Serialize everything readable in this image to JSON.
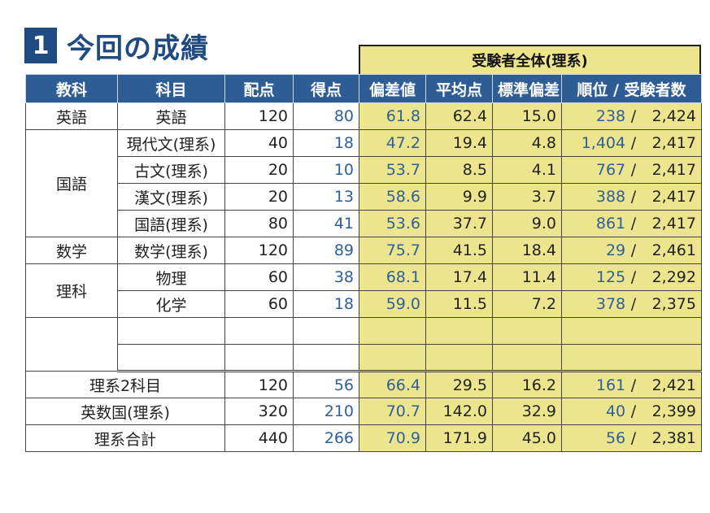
{
  "title": {
    "number": "1",
    "text": "今回の成績"
  },
  "group_header": "受験者全体(理系)",
  "headers": [
    "教科",
    "科目",
    "配点",
    "得点",
    "偏差値",
    "平均点",
    "標準偏差",
    "順位 / 受験者数"
  ],
  "rows": [
    {
      "subject": "英語",
      "course": "英語",
      "max": "120",
      "score": "80",
      "dev": "61.8",
      "avg": "62.4",
      "sd": "15.0",
      "rank": "238",
      "total": "2,424"
    },
    {
      "subject": "国語",
      "course": "現代文(理系)",
      "max": "40",
      "score": "18",
      "dev": "47.2",
      "avg": "19.4",
      "sd": "4.8",
      "rank": "1,404",
      "total": "2,417"
    },
    {
      "course": "古文(理系)",
      "max": "20",
      "score": "10",
      "dev": "53.7",
      "avg": "8.5",
      "sd": "4.1",
      "rank": "767",
      "total": "2,417"
    },
    {
      "course": "漢文(理系)",
      "max": "20",
      "score": "13",
      "dev": "58.6",
      "avg": "9.9",
      "sd": "3.7",
      "rank": "388",
      "total": "2,417"
    },
    {
      "course": "国語(理系)",
      "max": "80",
      "score": "41",
      "dev": "53.6",
      "avg": "37.7",
      "sd": "9.0",
      "rank": "861",
      "total": "2,417"
    },
    {
      "subject": "数学",
      "course": "数学(理系)",
      "max": "120",
      "score": "89",
      "dev": "75.7",
      "avg": "41.5",
      "sd": "18.4",
      "rank": "29",
      "total": "2,461"
    },
    {
      "subject": "理科",
      "course": "物理",
      "max": "60",
      "score": "38",
      "dev": "68.1",
      "avg": "17.4",
      "sd": "11.4",
      "rank": "125",
      "total": "2,292"
    },
    {
      "course": "化学",
      "max": "60",
      "score": "18",
      "dev": "59.0",
      "avg": "11.5",
      "sd": "7.2",
      "rank": "378",
      "total": "2,375"
    }
  ],
  "totals": [
    {
      "label": "理系2科目",
      "max": "120",
      "score": "56",
      "dev": "66.4",
      "avg": "29.5",
      "sd": "16.2",
      "rank": "161",
      "total": "2,421"
    },
    {
      "label": "英数国(理系)",
      "max": "320",
      "score": "210",
      "dev": "70.7",
      "avg": "142.0",
      "sd": "32.9",
      "rank": "40",
      "total": "2,399"
    },
    {
      "label": "理系合計",
      "max": "440",
      "score": "266",
      "dev": "70.9",
      "avg": "171.9",
      "sd": "45.0",
      "rank": "56",
      "total": "2,381"
    }
  ],
  "slash": "/",
  "colors": {
    "header_bg": "#2e5d96",
    "highlight": "#ede58e",
    "score_blue": "#2f5f9a",
    "title_blue": "#1f4a82"
  }
}
